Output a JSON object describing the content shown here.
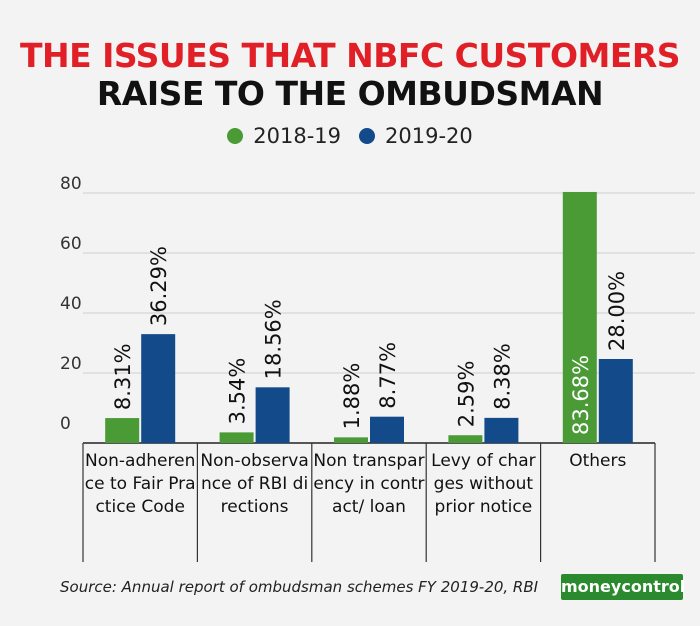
{
  "title": {
    "line1": "THE ISSUES THAT NBFC CUSTOMERS",
    "line2": "RAISE TO THE OMBUDSMAN"
  },
  "legend": [
    {
      "label": "2018-19",
      "color": "#4a9a35"
    },
    {
      "label": "2019-20",
      "color": "#134a8a"
    }
  ],
  "source": "Source: Annual report of ombudsman schemes FY 2019-20, RBI",
  "logo_text": "moneycontrol",
  "chart_data": {
    "type": "bar",
    "categories": [
      "Non-adherence to Fair Practice Code",
      "Non-observance of RBI directions",
      "Non transparency in contract/ loan",
      "Levy of charges without prior notice",
      "Others"
    ],
    "series": [
      {
        "name": "2018-19",
        "color": "#4a9a35",
        "values": [
          8.31,
          3.54,
          1.88,
          2.59,
          83.68
        ],
        "labels": [
          "8.31%",
          "3.54%",
          "1.88%",
          "2.59%",
          "83.68%"
        ]
      },
      {
        "name": "2019-20",
        "color": "#134a8a",
        "values": [
          36.29,
          18.56,
          8.77,
          8.38,
          28.0
        ],
        "labels": [
          "36.29%",
          "18.56%",
          "8.77%",
          "8.38%",
          "28.00%"
        ]
      }
    ],
    "yticks": [
      0,
      20,
      40,
      60,
      80
    ],
    "ylim": [
      0,
      90
    ],
    "grid": true
  }
}
